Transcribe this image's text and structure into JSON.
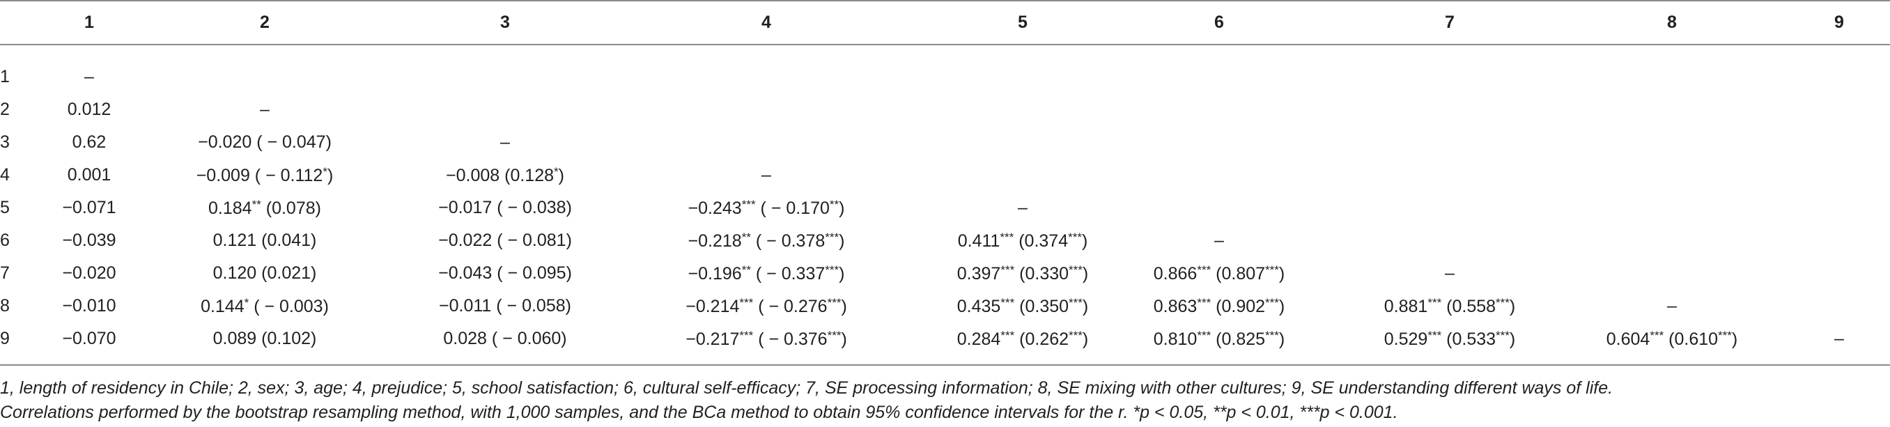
{
  "columns": [
    "1",
    "2",
    "3",
    "4",
    "5",
    "6",
    "7",
    "8",
    "9"
  ],
  "rows": [
    {
      "label": "1",
      "cells": [
        "–",
        "",
        "",
        "",
        "",
        "",
        "",
        "",
        ""
      ]
    },
    {
      "label": "2",
      "cells": [
        "0.012",
        "–",
        "",
        "",
        "",
        "",
        "",
        "",
        ""
      ]
    },
    {
      "label": "3",
      "cells": [
        "0.62",
        "−0.020 ( − 0.047)",
        "–",
        "",
        "",
        "",
        "",
        "",
        ""
      ]
    },
    {
      "label": "4",
      "cells": [
        "0.001",
        "−0.009 ( − 0.112*)",
        "−0.008 (0.128*)",
        "–",
        "",
        "",
        "",
        "",
        ""
      ]
    },
    {
      "label": "5",
      "cells": [
        "−0.071",
        "0.184** (0.078)",
        "−0.017 ( − 0.038)",
        "−0.243*** ( − 0.170**)",
        "–",
        "",
        "",
        "",
        ""
      ]
    },
    {
      "label": "6",
      "cells": [
        "−0.039",
        "0.121 (0.041)",
        "−0.022 ( − 0.081)",
        "−0.218** ( − 0.378***)",
        "0.411*** (0.374***)",
        "–",
        "",
        "",
        ""
      ]
    },
    {
      "label": "7",
      "cells": [
        "−0.020",
        "0.120 (0.021)",
        "−0.043 ( − 0.095)",
        "−0.196** ( − 0.337***)",
        "0.397*** (0.330***)",
        "0.866*** (0.807***)",
        "–",
        "",
        ""
      ]
    },
    {
      "label": "8",
      "cells": [
        "−0.010",
        "0.144* ( − 0.003)",
        "−0.011 ( − 0.058)",
        "−0.214*** ( − 0.276***)",
        "0.435*** (0.350***)",
        "0.863*** (0.902***)",
        "0.881*** (0.558***)",
        "–",
        ""
      ]
    },
    {
      "label": "9",
      "cells": [
        "−0.070",
        "0.089 (0.102)",
        "0.028 ( − 0.060)",
        "−0.217*** ( − 0.376***)",
        "0.284*** (0.262***)",
        "0.810*** (0.825***)",
        "0.529*** (0.533***)",
        "0.604*** (0.610***)",
        "–"
      ]
    }
  ],
  "notes": [
    "1, length of residency in Chile; 2, sex; 3, age; 4, prejudice; 5, school satisfaction; 6, cultural self-efficacy; 7, SE processing information; 8, SE mixing with other cultures; 9, SE understanding different ways of life.",
    "Correlations performed by the bootstrap resampling method, with 1,000 samples, and the BCa method to obtain 95% confidence intervals for the r. *p < 0.05, **p < 0.01, ***p < 0.001."
  ]
}
